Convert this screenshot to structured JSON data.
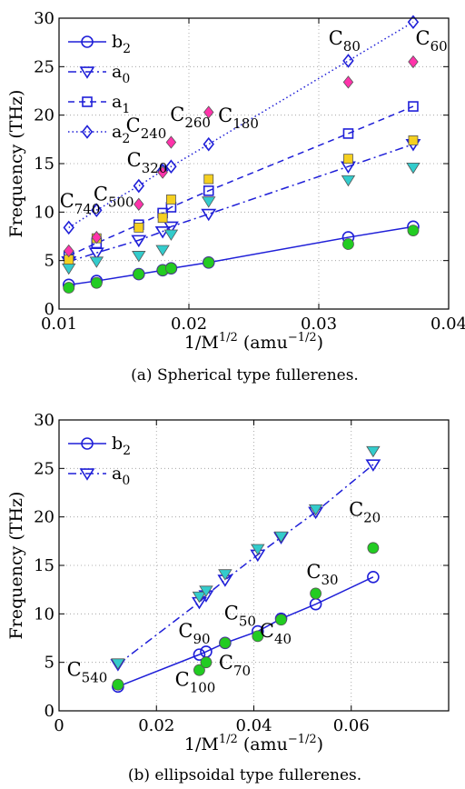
{
  "chart_data": [
    {
      "type": "scatter",
      "caption": "(a)  Spherical type fullerenes.",
      "xlabel": "1/M",
      "xlabel_sup": "1/2",
      "xlabel_unit": "(amu",
      "xlabel_unit_sup": "−1/2",
      "ylabel": "Frequency (THz)",
      "xlim": [
        0.01,
        0.04
      ],
      "ylim": [
        0,
        30
      ],
      "xticks": [
        0.01,
        0.02,
        0.03,
        0.04
      ],
      "xtick_labels": [
        "0.01",
        "0.02",
        "0.03",
        "0.04"
      ],
      "yticks": [
        0,
        5,
        10,
        15,
        20,
        25,
        30
      ],
      "ytick_labels": [
        "0",
        "5",
        "10",
        "15",
        "20",
        "25",
        "30"
      ],
      "grid": true,
      "legend_position": "top-left",
      "x": [
        0.01075,
        0.01289,
        0.01614,
        0.01798,
        0.01863,
        0.02152,
        0.03227,
        0.03727
      ],
      "series": [
        {
          "name": "b",
          "name_sub": "2",
          "marker": "circle-open",
          "line": "solid",
          "color": "#1f1fd8",
          "values": [
            2.5,
            2.9,
            3.6,
            4.0,
            4.2,
            4.8,
            7.4,
            8.5
          ]
        },
        {
          "name": "a",
          "name_sub": "0",
          "marker": "triangle-open",
          "line": "dashdot",
          "color": "#1f1fd8",
          "values": [
            4.9,
            5.8,
            7.1,
            8.0,
            8.5,
            9.8,
            14.7,
            17.0
          ]
        },
        {
          "name": "a",
          "name_sub": "1",
          "marker": "square-open",
          "line": "dashed",
          "color": "#1f1fd8",
          "values": [
            5.5,
            6.8,
            8.7,
            9.9,
            10.5,
            12.2,
            18.1,
            20.9
          ]
        },
        {
          "name": "a",
          "name_sub": "2",
          "marker": "diamond-open",
          "line": "dotted",
          "color": "#1f1fd8",
          "values": [
            8.4,
            10.2,
            12.7,
            14.3,
            14.7,
            17.0,
            25.6,
            29.6
          ]
        },
        {
          "marker": "circle-filled",
          "color": "#22cc22",
          "values": [
            2.2,
            2.7,
            3.6,
            4.0,
            4.2,
            4.8,
            6.7,
            8.1
          ]
        },
        {
          "marker": "triangle-filled",
          "color": "#33cccc",
          "values": [
            4.2,
            4.9,
            5.5,
            6.1,
            7.7,
            11.1,
            13.3,
            14.6
          ]
        },
        {
          "marker": "square-filled",
          "color": "#f5d020",
          "values": [
            5.1,
            7.3,
            8.4,
            9.4,
            11.3,
            13.4,
            15.5,
            17.4
          ]
        },
        {
          "marker": "diamond-filled",
          "color": "#ff33aa",
          "values": [
            6.0,
            7.4,
            10.8,
            14.1,
            17.2,
            20.3,
            23.4,
            25.5
          ]
        }
      ],
      "annotations": [
        {
          "label": "C",
          "sub": "740",
          "x": 0.01005,
          "y": 10.5
        },
        {
          "label": "C",
          "sub": "500",
          "x": 0.01265,
          "y": 11.2
        },
        {
          "label": "C",
          "sub": "320",
          "x": 0.01522,
          "y": 14.7
        },
        {
          "label": "C",
          "sub": "240",
          "x": 0.01515,
          "y": 18.3
        },
        {
          "label": "C",
          "sub": "260",
          "x": 0.01855,
          "y": 19.4
        },
        {
          "label": "C",
          "sub": "180",
          "x": 0.02225,
          "y": 19.3
        },
        {
          "label": "C",
          "sub": "80",
          "x": 0.03075,
          "y": 27.3
        },
        {
          "label": "C",
          "sub": "60",
          "x": 0.03745,
          "y": 27.3
        }
      ]
    },
    {
      "type": "scatter",
      "caption": "(b)  ellipsoidal type fullerenes.",
      "xlabel": "1/M",
      "xlabel_sup": "1/2",
      "xlabel_unit": "(amu",
      "xlabel_unit_sup": "−1/2",
      "ylabel": "Frequency (THz)",
      "xlim": [
        0,
        0.08
      ],
      "ylim": [
        0,
        30
      ],
      "xticks": [
        0,
        0.02,
        0.04,
        0.06
      ],
      "xtick_labels": [
        "0",
        "0.02",
        "0.04",
        "0.06"
      ],
      "yticks": [
        0,
        5,
        10,
        15,
        20,
        25,
        30
      ],
      "ytick_labels": [
        "0",
        "5",
        "10",
        "15",
        "20",
        "25",
        "30"
      ],
      "grid": true,
      "legend_position": "top-left",
      "series": [
        {
          "name": "b",
          "name_sub": "2",
          "marker": "circle-open",
          "line": "solid",
          "color": "#1f1fd8",
          "x": [
            0.0121,
            0.0288,
            0.0302,
            0.0341,
            0.0408,
            0.0456,
            0.0527,
            0.0645
          ],
          "values": [
            2.5,
            5.8,
            6.1,
            7.0,
            8.2,
            9.5,
            11.0,
            13.8
          ]
        },
        {
          "name": "a",
          "name_sub": "0",
          "marker": "triangle-open",
          "line": "dashdot",
          "color": "#1f1fd8",
          "x": [
            0.0121,
            0.0288,
            0.0302,
            0.0341,
            0.0408,
            0.0456,
            0.0527,
            0.0645
          ],
          "values": [
            4.8,
            11.2,
            11.9,
            13.5,
            16.1,
            17.9,
            20.5,
            25.4
          ]
        },
        {
          "marker": "circle-filled",
          "color": "#22cc22",
          "x": [
            0.0121,
            0.0288,
            0.0302,
            0.0341,
            0.0408,
            0.0456,
            0.0527,
            0.0645
          ],
          "values": [
            2.7,
            4.2,
            5.0,
            7.0,
            7.7,
            9.4,
            12.1,
            16.8
          ]
        },
        {
          "marker": "triangle-filled",
          "color": "#33cccc",
          "x": [
            0.0121,
            0.0288,
            0.0302,
            0.0341,
            0.0408,
            0.0456,
            0.0527,
            0.0645
          ],
          "values": [
            4.9,
            11.8,
            12.4,
            14.1,
            16.7,
            18.0,
            20.8,
            26.8
          ]
        }
      ],
      "annotations": [
        {
          "label": "C",
          "sub": "540",
          "x": 0.0016,
          "y": 3.6
        },
        {
          "label": "C",
          "sub": "100",
          "x": 0.0238,
          "y": 2.6
        },
        {
          "label": "C",
          "sub": "90",
          "x": 0.0245,
          "y": 7.6
        },
        {
          "label": "C",
          "sub": "70",
          "x": 0.0328,
          "y": 4.3
        },
        {
          "label": "C",
          "sub": "50",
          "x": 0.0339,
          "y": 9.4
        },
        {
          "label": "C",
          "sub": "40",
          "x": 0.0412,
          "y": 7.6
        },
        {
          "label": "C",
          "sub": "30",
          "x": 0.0508,
          "y": 13.7
        },
        {
          "label": "C",
          "sub": "20",
          "x": 0.0595,
          "y": 20.1
        }
      ]
    }
  ]
}
